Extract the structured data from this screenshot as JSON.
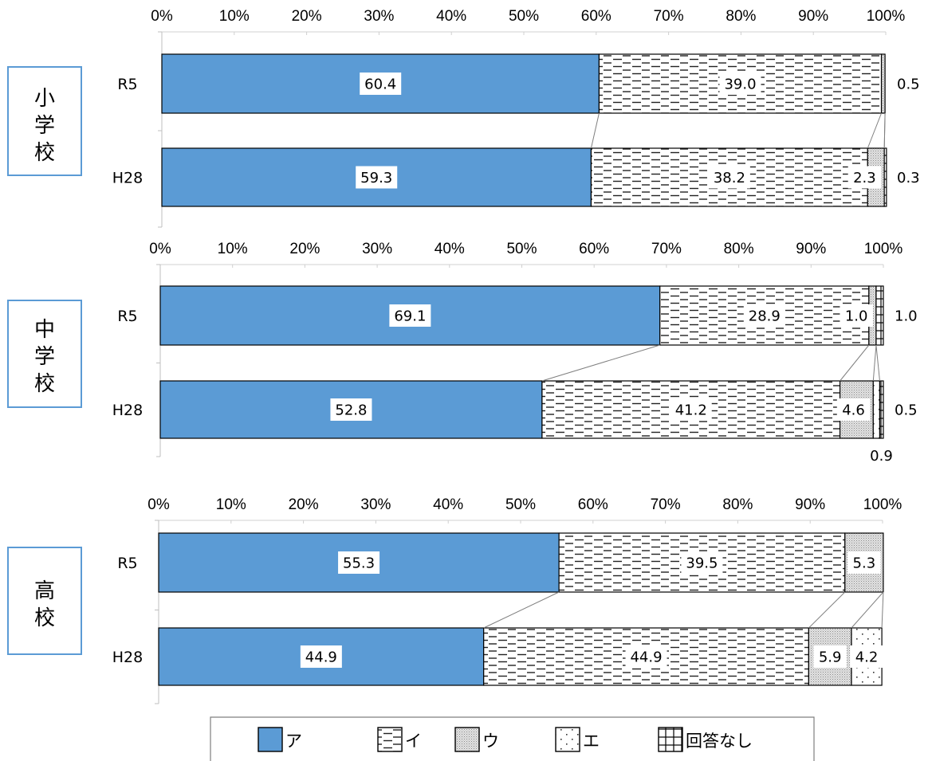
{
  "chart_data": {
    "type": "bar",
    "orientation": "horizontal-stacked-percent",
    "xlim": [
      0,
      100
    ],
    "x_ticks": [
      "0%",
      "10%",
      "20%",
      "30%",
      "40%",
      "50%",
      "60%",
      "70%",
      "80%",
      "90%",
      "100%"
    ],
    "legend": {
      "placement": "bottom",
      "entries": [
        {
          "name": "ア",
          "pattern": "solid",
          "color": "#5b9bd5"
        },
        {
          "name": "イ",
          "pattern": "dashes",
          "color": "#ffffff"
        },
        {
          "name": "ウ",
          "pattern": "fine-dots",
          "color": "#d9d9d9"
        },
        {
          "name": "エ",
          "pattern": "sparse-dots",
          "color": "#ffffff"
        },
        {
          "name": "回答なし",
          "pattern": "grid",
          "color": "#ffffff"
        }
      ]
    },
    "panels": [
      {
        "group": "小学校",
        "categories": [
          "R5",
          "H28"
        ],
        "series": [
          {
            "name": "ア",
            "values": [
              60.4,
              59.3
            ]
          },
          {
            "name": "イ",
            "values": [
              39.0,
              38.2
            ]
          },
          {
            "name": "ウ",
            "values": [
              0.5,
              2.3
            ]
          },
          {
            "name": "エ",
            "values": [
              0.0,
              0.0
            ]
          },
          {
            "name": "回答なし",
            "values": [
              0.0,
              0.3
            ]
          }
        ],
        "data_labels": [
          {
            "cat": 0,
            "series": "ア",
            "text": "60.4",
            "where": "inside"
          },
          {
            "cat": 0,
            "series": "イ",
            "text": "39.0",
            "where": "inside"
          },
          {
            "cat": 0,
            "series": "ウ",
            "text": "0.5",
            "where": "right"
          },
          {
            "cat": 1,
            "series": "ア",
            "text": "59.3",
            "where": "inside"
          },
          {
            "cat": 1,
            "series": "イ",
            "text": "38.2",
            "where": "inside"
          },
          {
            "cat": 1,
            "series": "ウ",
            "text": "2.3",
            "where": "inside-end"
          },
          {
            "cat": 1,
            "series": "回答なし",
            "text": "0.3",
            "where": "right"
          }
        ]
      },
      {
        "group": "中学校",
        "categories": [
          "R5",
          "H28"
        ],
        "series": [
          {
            "name": "ア",
            "values": [
              69.1,
              52.8
            ]
          },
          {
            "name": "イ",
            "values": [
              28.9,
              41.2
            ]
          },
          {
            "name": "ウ",
            "values": [
              1.0,
              4.6
            ]
          },
          {
            "name": "エ",
            "values": [
              0.0,
              0.9
            ]
          },
          {
            "name": "回答なし",
            "values": [
              1.0,
              0.5
            ]
          }
        ],
        "data_labels": [
          {
            "cat": 0,
            "series": "ア",
            "text": "69.1",
            "where": "inside"
          },
          {
            "cat": 0,
            "series": "イ",
            "text": "28.9",
            "where": "inside"
          },
          {
            "cat": 0,
            "series": "ウ",
            "text": "1.0",
            "where": "inside-end"
          },
          {
            "cat": 0,
            "series": "回答なし",
            "text": "1.0",
            "where": "right"
          },
          {
            "cat": 1,
            "series": "ア",
            "text": "52.8",
            "where": "inside"
          },
          {
            "cat": 1,
            "series": "イ",
            "text": "41.2",
            "where": "inside"
          },
          {
            "cat": 1,
            "series": "ウ",
            "text": "4.6",
            "where": "inside-end"
          },
          {
            "cat": 1,
            "series": "回答なし",
            "text": "0.5",
            "where": "right"
          },
          {
            "cat": 1,
            "series": "エ",
            "text": "0.9",
            "where": "below"
          }
        ]
      },
      {
        "group": "高校",
        "categories": [
          "R5",
          "H28"
        ],
        "series": [
          {
            "name": "ア",
            "values": [
              55.3,
              44.9
            ]
          },
          {
            "name": "イ",
            "values": [
              39.5,
              44.9
            ]
          },
          {
            "name": "ウ",
            "values": [
              5.3,
              5.9
            ]
          },
          {
            "name": "エ",
            "values": [
              0.0,
              4.2
            ]
          },
          {
            "name": "回答なし",
            "values": [
              0.0,
              0.0
            ]
          }
        ],
        "data_labels": [
          {
            "cat": 0,
            "series": "ア",
            "text": "55.3",
            "where": "inside"
          },
          {
            "cat": 0,
            "series": "イ",
            "text": "39.5",
            "where": "inside"
          },
          {
            "cat": 0,
            "series": "ウ",
            "text": "5.3",
            "where": "inside"
          },
          {
            "cat": 1,
            "series": "ア",
            "text": "44.9",
            "where": "inside"
          },
          {
            "cat": 1,
            "series": "イ",
            "text": "44.9",
            "where": "inside"
          },
          {
            "cat": 1,
            "series": "ウ",
            "text": "5.9",
            "where": "inside"
          },
          {
            "cat": 1,
            "series": "エ",
            "text": "4.2",
            "where": "inside"
          }
        ]
      }
    ]
  }
}
